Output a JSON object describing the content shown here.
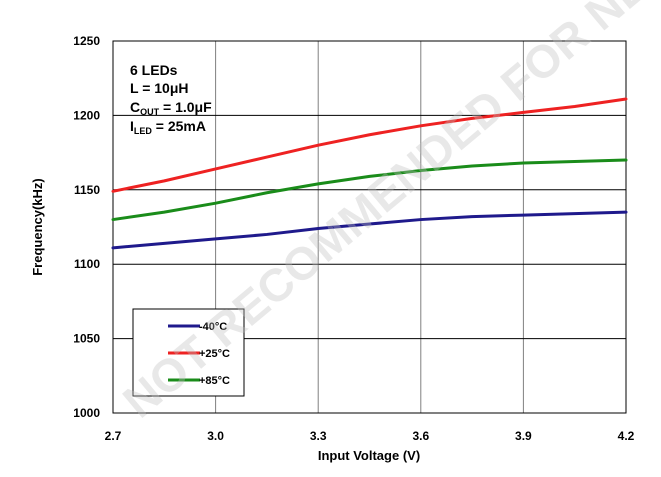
{
  "chart_data": {
    "type": "line",
    "xlabel": "Input Voltage (V)",
    "ylabel": "Frequency(kHz)",
    "xlim": [
      2.7,
      4.2
    ],
    "ylim": [
      1000,
      1250
    ],
    "x_ticks": [
      "2.7",
      "3.0",
      "3.3",
      "3.6",
      "3.9",
      "4.2"
    ],
    "y_ticks": [
      "1000",
      "1050",
      "1100",
      "1150",
      "1200",
      "1250"
    ],
    "grid": true,
    "legend_position": "bottom-left",
    "annotations": {
      "line1": "6 LEDs",
      "line2": "L = 10μH",
      "line3_main": "C",
      "line3_sub": "OUT",
      "line3_rest": " = 1.0μF",
      "line4_main": "I",
      "line4_sub": "LED",
      "line4_rest": " = 25mA"
    },
    "x": [
      2.7,
      2.85,
      3.0,
      3.15,
      3.3,
      3.45,
      3.6,
      3.75,
      3.9,
      4.05,
      4.2
    ],
    "series": [
      {
        "name": "-40°C",
        "color": "#1f1a8c",
        "values": [
          1111,
          1114,
          1117,
          1120,
          1124,
          1127,
          1130,
          1132,
          1133,
          1134,
          1135
        ]
      },
      {
        "name": "+25°C",
        "color": "#ee2222",
        "values": [
          1149,
          1156,
          1164,
          1172,
          1180,
          1187,
          1193,
          1198,
          1202,
          1206,
          1211
        ]
      },
      {
        "name": "+85°C",
        "color": "#1a8c1a",
        "values": [
          1130,
          1135,
          1141,
          1148,
          1154,
          1159,
          1163,
          1166,
          1168,
          1169,
          1170
        ]
      }
    ]
  },
  "watermark": "NOT RECOMMENDED FOR NEW DESIGN - CONTACT DISTRIBUTOR"
}
